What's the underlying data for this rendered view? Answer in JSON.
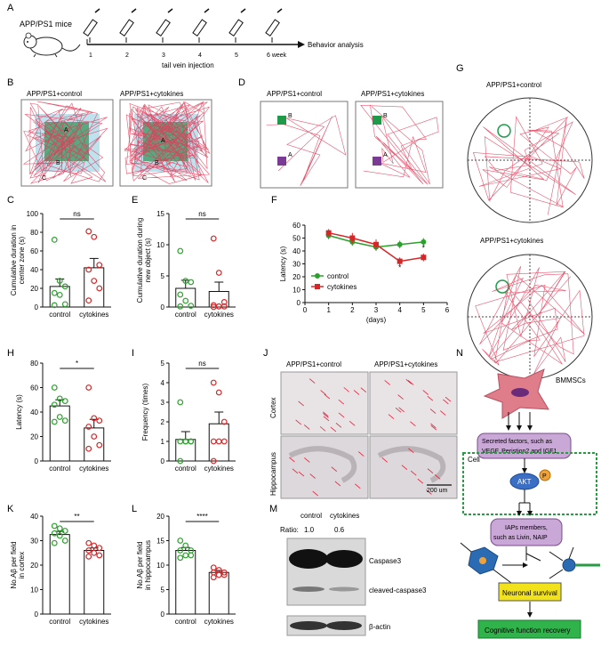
{
  "panel_labels": [
    "A",
    "B",
    "C",
    "D",
    "E",
    "F",
    "G",
    "H",
    "I",
    "J",
    "K",
    "L",
    "M",
    "N"
  ],
  "panelA": {
    "mice_label": "APP/PS1 mice",
    "timepoints": [
      "1",
      "2",
      "3",
      "4",
      "5",
      "6 week"
    ],
    "arrow_label": "Behavior analysis",
    "injection_label": "tail vein injection"
  },
  "panelB": {
    "left_title": "APP/PS1+control",
    "right_title": "APP/PS1+cytokines",
    "zones": [
      "A",
      "B",
      "C"
    ]
  },
  "panelD": {
    "left_title": "APP/PS1+control",
    "right_title": "APP/PS1+cytokines",
    "objects": [
      "B",
      "A"
    ]
  },
  "panelG": {
    "top_title": "APP/PS1+control",
    "bottom_title": "APP/PS1+cytokines"
  },
  "panelJ": {
    "col_titles": [
      "APP/PS1+control",
      "APP/PS1+cytokines"
    ],
    "row_labels": [
      "Cortex",
      "Hippocampus"
    ],
    "scale_bar": "200 um"
  },
  "panelM": {
    "col_labels": [
      "control",
      "cytokines"
    ],
    "ratio_label": "Ratio:",
    "ratio_values": [
      "1.0",
      "0.6"
    ],
    "bands": [
      "Caspase3",
      "cleaved-caspase3",
      "β-actin"
    ]
  },
  "panelN": {
    "title": "BMMSCs",
    "secreted": [
      "Secreted factors, such as",
      "VEGF, Peristion2 and IGF1"
    ],
    "cell": "Cell",
    "akt": "AKT",
    "p": "P",
    "iaps": [
      "IAPs members,",
      "such as Livin, NAIP"
    ],
    "survival": "Neuronal survival",
    "recovery": "Cognitive function recovery"
  },
  "chart_data": [
    {
      "panel": "C",
      "type": "bar",
      "categories": [
        "control",
        "cytokines"
      ],
      "values": [
        22,
        42
      ],
      "errors": [
        8,
        10
      ],
      "points": [
        [
          72,
          28,
          22,
          15,
          13,
          3,
          2
        ],
        [
          81,
          75,
          45,
          40,
          28,
          20,
          7
        ]
      ],
      "ylabel": "Cumulative duration in center zone (s)",
      "ylim": [
        0,
        100
      ],
      "yticks": [
        0,
        20,
        40,
        60,
        80,
        100
      ],
      "significance": "ns"
    },
    {
      "panel": "E",
      "type": "bar",
      "categories": [
        "control",
        "cytokines"
      ],
      "values": [
        3.0,
        2.5
      ],
      "errors": [
        1.3,
        1.5
      ],
      "points": [
        [
          9,
          4.2,
          4,
          2,
          1,
          0.2,
          0.1
        ],
        [
          11,
          5.5,
          0.8,
          0.3,
          0.1,
          0.1,
          0.0
        ]
      ],
      "ylabel": "Cumulative duration during new object (s)",
      "ylim": [
        0,
        15
      ],
      "yticks": [
        0,
        5,
        10,
        15
      ],
      "significance": "ns"
    },
    {
      "panel": "F",
      "type": "line",
      "x": [
        1,
        2,
        3,
        4,
        5
      ],
      "series": [
        {
          "name": "control",
          "values": [
            52,
            47,
            43,
            45,
            47
          ],
          "errors": [
            3,
            3,
            3,
            3,
            3
          ]
        },
        {
          "name": "cytokines",
          "values": [
            54,
            50,
            45,
            32,
            35
          ],
          "errors": [
            3,
            4,
            4,
            3,
            3
          ]
        }
      ],
      "xlabel": "(days)",
      "ylabel": "Latency (s)",
      "xlim": [
        0,
        6
      ],
      "ylim": [
        0,
        60
      ],
      "xticks": [
        0,
        1,
        2,
        3,
        4,
        5,
        6
      ],
      "yticks": [
        0,
        10,
        20,
        30,
        40,
        50,
        60
      ],
      "annotations": [
        "*",
        "*"
      ]
    },
    {
      "panel": "H",
      "type": "bar",
      "categories": [
        "control",
        "cytokines"
      ],
      "values": [
        45,
        27
      ],
      "errors": [
        5,
        7
      ],
      "points": [
        [
          60,
          51,
          49,
          46,
          36,
          33,
          32
        ],
        [
          60,
          35,
          33,
          28,
          20,
          13,
          10
        ]
      ],
      "ylabel": "Latency (s)",
      "ylim": [
        0,
        80
      ],
      "yticks": [
        0,
        20,
        40,
        60,
        80
      ],
      "significance": "*"
    },
    {
      "panel": "I",
      "type": "bar",
      "categories": [
        "control",
        "cytokines"
      ],
      "values": [
        1.1,
        1.9
      ],
      "errors": [
        0.4,
        0.6
      ],
      "points": [
        [
          3,
          1,
          1,
          1,
          1,
          1,
          0
        ],
        [
          4,
          3.5,
          2,
          1,
          1,
          1,
          0
        ]
      ],
      "ylabel": "Frequency (times)",
      "ylim": [
        0,
        5
      ],
      "yticks": [
        0,
        1,
        2,
        3,
        4,
        5
      ],
      "significance": "ns"
    },
    {
      "panel": "K",
      "type": "bar",
      "categories": [
        "control",
        "cytokines"
      ],
      "values": [
        32.5,
        26
      ],
      "errors": [
        1.3,
        1.0
      ],
      "points": [
        [
          36,
          35,
          34,
          33,
          32,
          30,
          29
        ],
        [
          29,
          28,
          27,
          26,
          25,
          24,
          23.5
        ]
      ],
      "ylabel": "No.Aβ per field in cortex",
      "ylim": [
        0,
        40
      ],
      "yticks": [
        0,
        10,
        20,
        30,
        40
      ],
      "significance": "**"
    },
    {
      "panel": "L",
      "type": "bar",
      "categories": [
        "control",
        "cytokines"
      ],
      "values": [
        13,
        8.5
      ],
      "errors": [
        0.6,
        0.4
      ],
      "points": [
        [
          15,
          14,
          13,
          13,
          12,
          12,
          11.5
        ],
        [
          9.5,
          9,
          8.5,
          8.5,
          8,
          8,
          7.5
        ]
      ],
      "ylabel": "No.Aβ per field in hippocampus",
      "ylim": [
        0,
        20
      ],
      "yticks": [
        0,
        5,
        10,
        15,
        20
      ],
      "significance": "****"
    }
  ]
}
